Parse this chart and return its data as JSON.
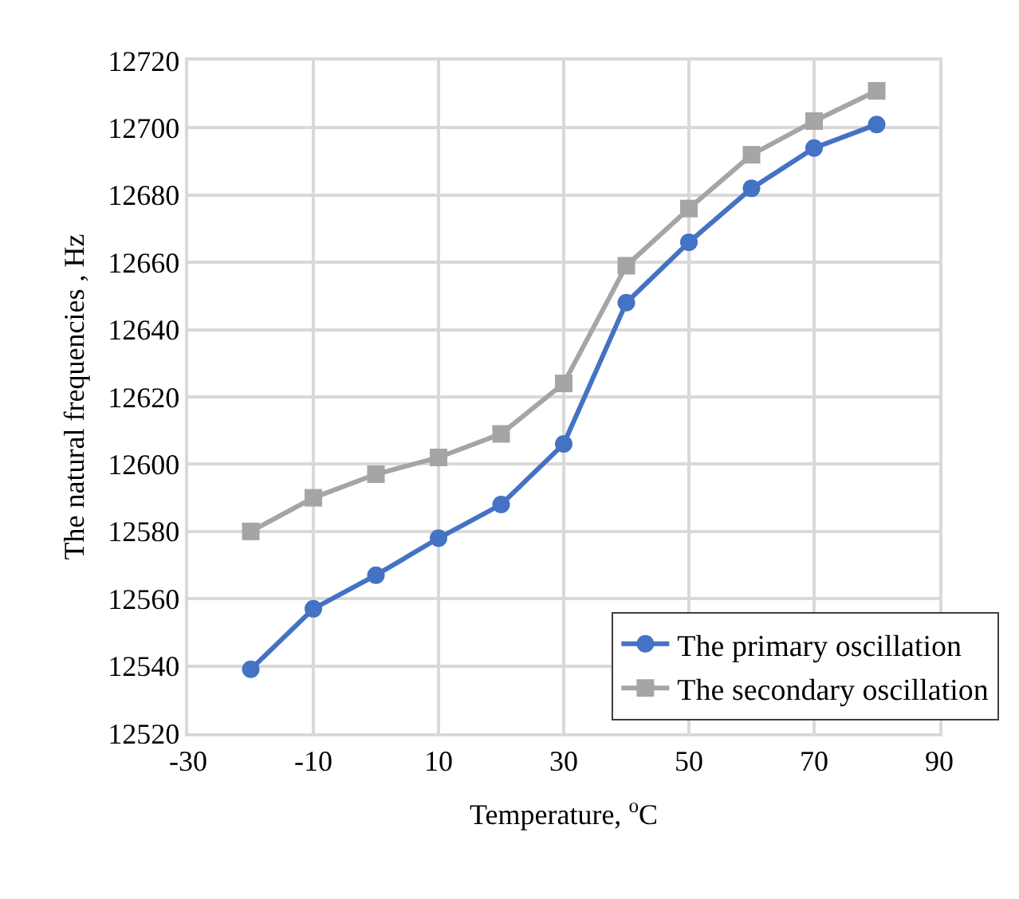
{
  "chart_data": {
    "type": "line",
    "xlabel": "Temperature, $^{o}$C",
    "ylabel": "The natural frequencies , Hz",
    "x": [
      -20,
      -10,
      0,
      10,
      20,
      30,
      40,
      50,
      60,
      70,
      80
    ],
    "series": [
      {
        "name": "The primary oscillation",
        "color": "#4472c4",
        "marker": "circle",
        "values": [
          12539,
          12557,
          12567,
          12578,
          12588,
          12606,
          12648,
          12666,
          12682,
          12694,
          12701
        ]
      },
      {
        "name": "The secondary oscillation",
        "color": "#a5a5a5",
        "marker": "square",
        "values": [
          12580,
          12590,
          12597,
          12602,
          12609,
          12624,
          12659,
          12676,
          12692,
          12702,
          12711
        ]
      }
    ],
    "xlim": [
      -30,
      90
    ],
    "xticks": [
      -30,
      -10,
      10,
      30,
      50,
      70,
      90
    ],
    "ylim": [
      12520,
      12720
    ],
    "yticks": [
      12520,
      12540,
      12560,
      12580,
      12600,
      12620,
      12640,
      12660,
      12680,
      12700,
      12720
    ],
    "grid": true,
    "legend": "bottom right",
    "line_style": "solid"
  }
}
